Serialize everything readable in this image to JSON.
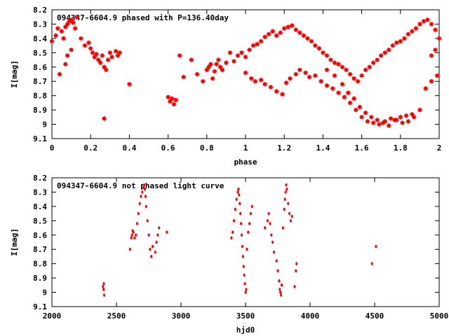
{
  "chart_data": [
    {
      "type": "scatter",
      "title": "094347-6604.9 phased with P=136.40day",
      "xlabel": "phase",
      "ylabel": "I[mag]",
      "xlim": [
        0,
        2
      ],
      "ylim": [
        9.1,
        8.2
      ],
      "y_inverted": true,
      "xticks": [
        "0",
        "0.2",
        "0.4",
        "0.6",
        "0.8",
        "1",
        "1.2",
        "1.4",
        "1.6",
        "1.8",
        "2"
      ],
      "yticks": [
        "8.2",
        "8.3",
        "8.4",
        "8.5",
        "8.6",
        "8.7",
        "8.8",
        "8.9",
        "9",
        "9.1"
      ],
      "marker": "asterisk",
      "color": "#ff0000",
      "series": [
        {
          "x": [
            0.0,
            0.02,
            0.03,
            0.05,
            0.06,
            0.07,
            0.08,
            0.09,
            0.1,
            0.11,
            0.12,
            0.13,
            0.04,
            0.07,
            0.08,
            0.1,
            0.15,
            0.17,
            0.19,
            0.2,
            0.21,
            0.22,
            0.23,
            0.24,
            0.25,
            0.26,
            0.27,
            0.28,
            0.29,
            0.3,
            0.31,
            0.33,
            0.34,
            0.35,
            0.27,
            0.4,
            0.6,
            0.61,
            0.62,
            0.63,
            0.64,
            0.66,
            0.68,
            0.72,
            0.75,
            0.78,
            0.8,
            0.81,
            0.82,
            0.83,
            0.84,
            0.85,
            0.86,
            0.87,
            0.88,
            0.9,
            0.92,
            0.94,
            0.96,
            0.98,
            1.0,
            1.02,
            1.04,
            1.06,
            1.08,
            1.1,
            1.12,
            1.14,
            1.16,
            1.18,
            1.2,
            1.22,
            1.24,
            1.26,
            1.28,
            1.3,
            1.32,
            1.34,
            1.36,
            1.38,
            1.4,
            1.42,
            1.44,
            1.46,
            1.48,
            1.5,
            1.52,
            1.54,
            1.56,
            1.58,
            1.6,
            1.62,
            1.64,
            1.66,
            1.68,
            1.7,
            1.72,
            1.74,
            1.76,
            1.78,
            1.8,
            1.82,
            1.84,
            1.86,
            1.88,
            1.9,
            1.92,
            1.94,
            1.96,
            1.98,
            2.0,
            1.21,
            1.23,
            1.26,
            1.28,
            1.31,
            1.33,
            1.36,
            1.39,
            1.42,
            1.45,
            1.48,
            1.51,
            1.54,
            1.57,
            1.6,
            1.63,
            1.66,
            1.69,
            1.72,
            1.75,
            1.78,
            1.81,
            1.84,
            1.87,
            1.9,
            1.93,
            1.96,
            1.99,
            1.0,
            1.03,
            1.05,
            1.08,
            1.1,
            1.13,
            1.16,
            1.19,
            1.42,
            1.46,
            1.5,
            1.53,
            1.56,
            1.59,
            1.62,
            1.65,
            1.68,
            1.71,
            1.74,
            1.77,
            1.8,
            1.83,
            1.86,
            1.96,
            1.98
          ],
          "y": [
            8.42,
            8.38,
            8.33,
            8.35,
            8.4,
            8.32,
            8.3,
            8.28,
            8.27,
            8.29,
            8.33,
            8.25,
            8.65,
            8.58,
            8.52,
            8.48,
            8.4,
            8.45,
            8.43,
            8.47,
            8.5,
            8.53,
            8.51,
            8.55,
            8.57,
            8.52,
            8.6,
            8.62,
            8.55,
            8.5,
            8.53,
            8.49,
            8.52,
            8.5,
            8.96,
            8.72,
            8.81,
            8.84,
            8.82,
            8.86,
            8.83,
            8.52,
            8.67,
            8.55,
            8.65,
            8.7,
            8.62,
            8.6,
            8.58,
            8.68,
            8.63,
            8.58,
            8.55,
            8.6,
            8.62,
            8.57,
            8.5,
            8.56,
            8.52,
            8.5,
            8.53,
            8.48,
            8.45,
            8.44,
            8.42,
            8.39,
            8.37,
            8.35,
            8.38,
            8.36,
            8.33,
            8.32,
            8.31,
            8.34,
            8.36,
            8.38,
            8.4,
            8.42,
            8.45,
            8.47,
            8.5,
            8.52,
            8.55,
            8.57,
            8.58,
            8.6,
            8.62,
            8.65,
            8.68,
            8.7,
            8.66,
            8.62,
            8.6,
            8.57,
            8.55,
            8.52,
            8.5,
            8.48,
            8.45,
            8.43,
            8.42,
            8.4,
            8.37,
            8.35,
            8.33,
            8.3,
            8.28,
            8.27,
            8.3,
            8.34,
            8.4,
            8.71,
            8.68,
            8.65,
            8.62,
            8.64,
            8.67,
            8.66,
            8.7,
            8.73,
            8.75,
            8.78,
            8.81,
            8.85,
            8.9,
            8.95,
            8.98,
            8.99,
            9.0,
            8.98,
            8.96,
            8.97,
            8.99,
            8.98,
            8.95,
            8.9,
            8.75,
            8.7,
            8.66,
            8.64,
            8.68,
            8.7,
            8.69,
            8.72,
            8.74,
            8.77,
            8.79,
            8.62,
            8.66,
            8.72,
            8.78,
            8.82,
            8.88,
            8.92,
            8.95,
            8.97,
            8.99,
            9.01,
            8.97,
            8.95,
            8.94,
            8.93,
            8.52,
            8.48
          ]
        }
      ]
    },
    {
      "type": "scatter",
      "title": "094347-6604.9 not phased light curve",
      "xlabel": "hjd0",
      "ylabel": "I[mag]",
      "xlim": [
        2000,
        5000
      ],
      "ylim": [
        9.1,
        8.2
      ],
      "y_inverted": true,
      "xticks": [
        "2000",
        "2500",
        "3000",
        "3500",
        "4000",
        "4500",
        "5000"
      ],
      "yticks": [
        "8.2",
        "8.3",
        "8.4",
        "8.5",
        "8.6",
        "8.7",
        "8.8",
        "8.9",
        "9",
        "9.1"
      ],
      "marker": "dot",
      "color": "#ff0000",
      "series": [
        {
          "x": [
            2395,
            2400,
            2402,
            2405,
            2605,
            2615,
            2620,
            2625,
            2630,
            2640,
            2650,
            2660,
            2670,
            2680,
            2690,
            2700,
            2710,
            2715,
            2720,
            2725,
            2730,
            2740,
            2750,
            2760,
            2770,
            2780,
            2800,
            2810,
            2820,
            2830,
            2890,
            3390,
            3400,
            3410,
            3420,
            3430,
            3440,
            3445,
            3450,
            3455,
            3460,
            3465,
            3470,
            3475,
            3480,
            3485,
            3490,
            3495,
            3500,
            3505,
            3510,
            3520,
            3530,
            3540,
            3550,
            3650,
            3670,
            3680,
            3690,
            3700,
            3710,
            3720,
            3740,
            3750,
            3760,
            3765,
            3770,
            3775,
            3780,
            3790,
            3800,
            3805,
            3810,
            3815,
            3820,
            3830,
            3840,
            3850,
            3860,
            3880,
            3890,
            3895,
            4480,
            4510
          ],
          "y": [
            8.96,
            8.98,
            8.94,
            9.02,
            8.7,
            8.62,
            8.6,
            8.57,
            8.58,
            8.62,
            8.6,
            8.52,
            8.45,
            8.38,
            8.33,
            8.3,
            8.27,
            8.25,
            8.28,
            8.33,
            8.4,
            8.5,
            8.6,
            8.7,
            8.75,
            8.68,
            8.72,
            8.65,
            8.6,
            8.55,
            8.58,
            8.62,
            8.58,
            8.5,
            8.42,
            8.35,
            8.3,
            8.28,
            8.32,
            8.38,
            8.45,
            8.52,
            8.6,
            8.68,
            8.75,
            8.82,
            8.88,
            8.94,
            9.0,
            8.98,
            8.7,
            8.58,
            8.52,
            8.45,
            8.4,
            8.55,
            8.5,
            8.45,
            8.52,
            8.6,
            8.65,
            8.72,
            8.78,
            8.85,
            8.92,
            8.98,
            9.0,
            9.02,
            8.95,
            8.55,
            8.42,
            8.35,
            8.3,
            8.25,
            8.28,
            8.38,
            8.45,
            8.5,
            8.47,
            8.96,
            8.85,
            8.8,
            8.8,
            8.68
          ]
        }
      ]
    }
  ]
}
